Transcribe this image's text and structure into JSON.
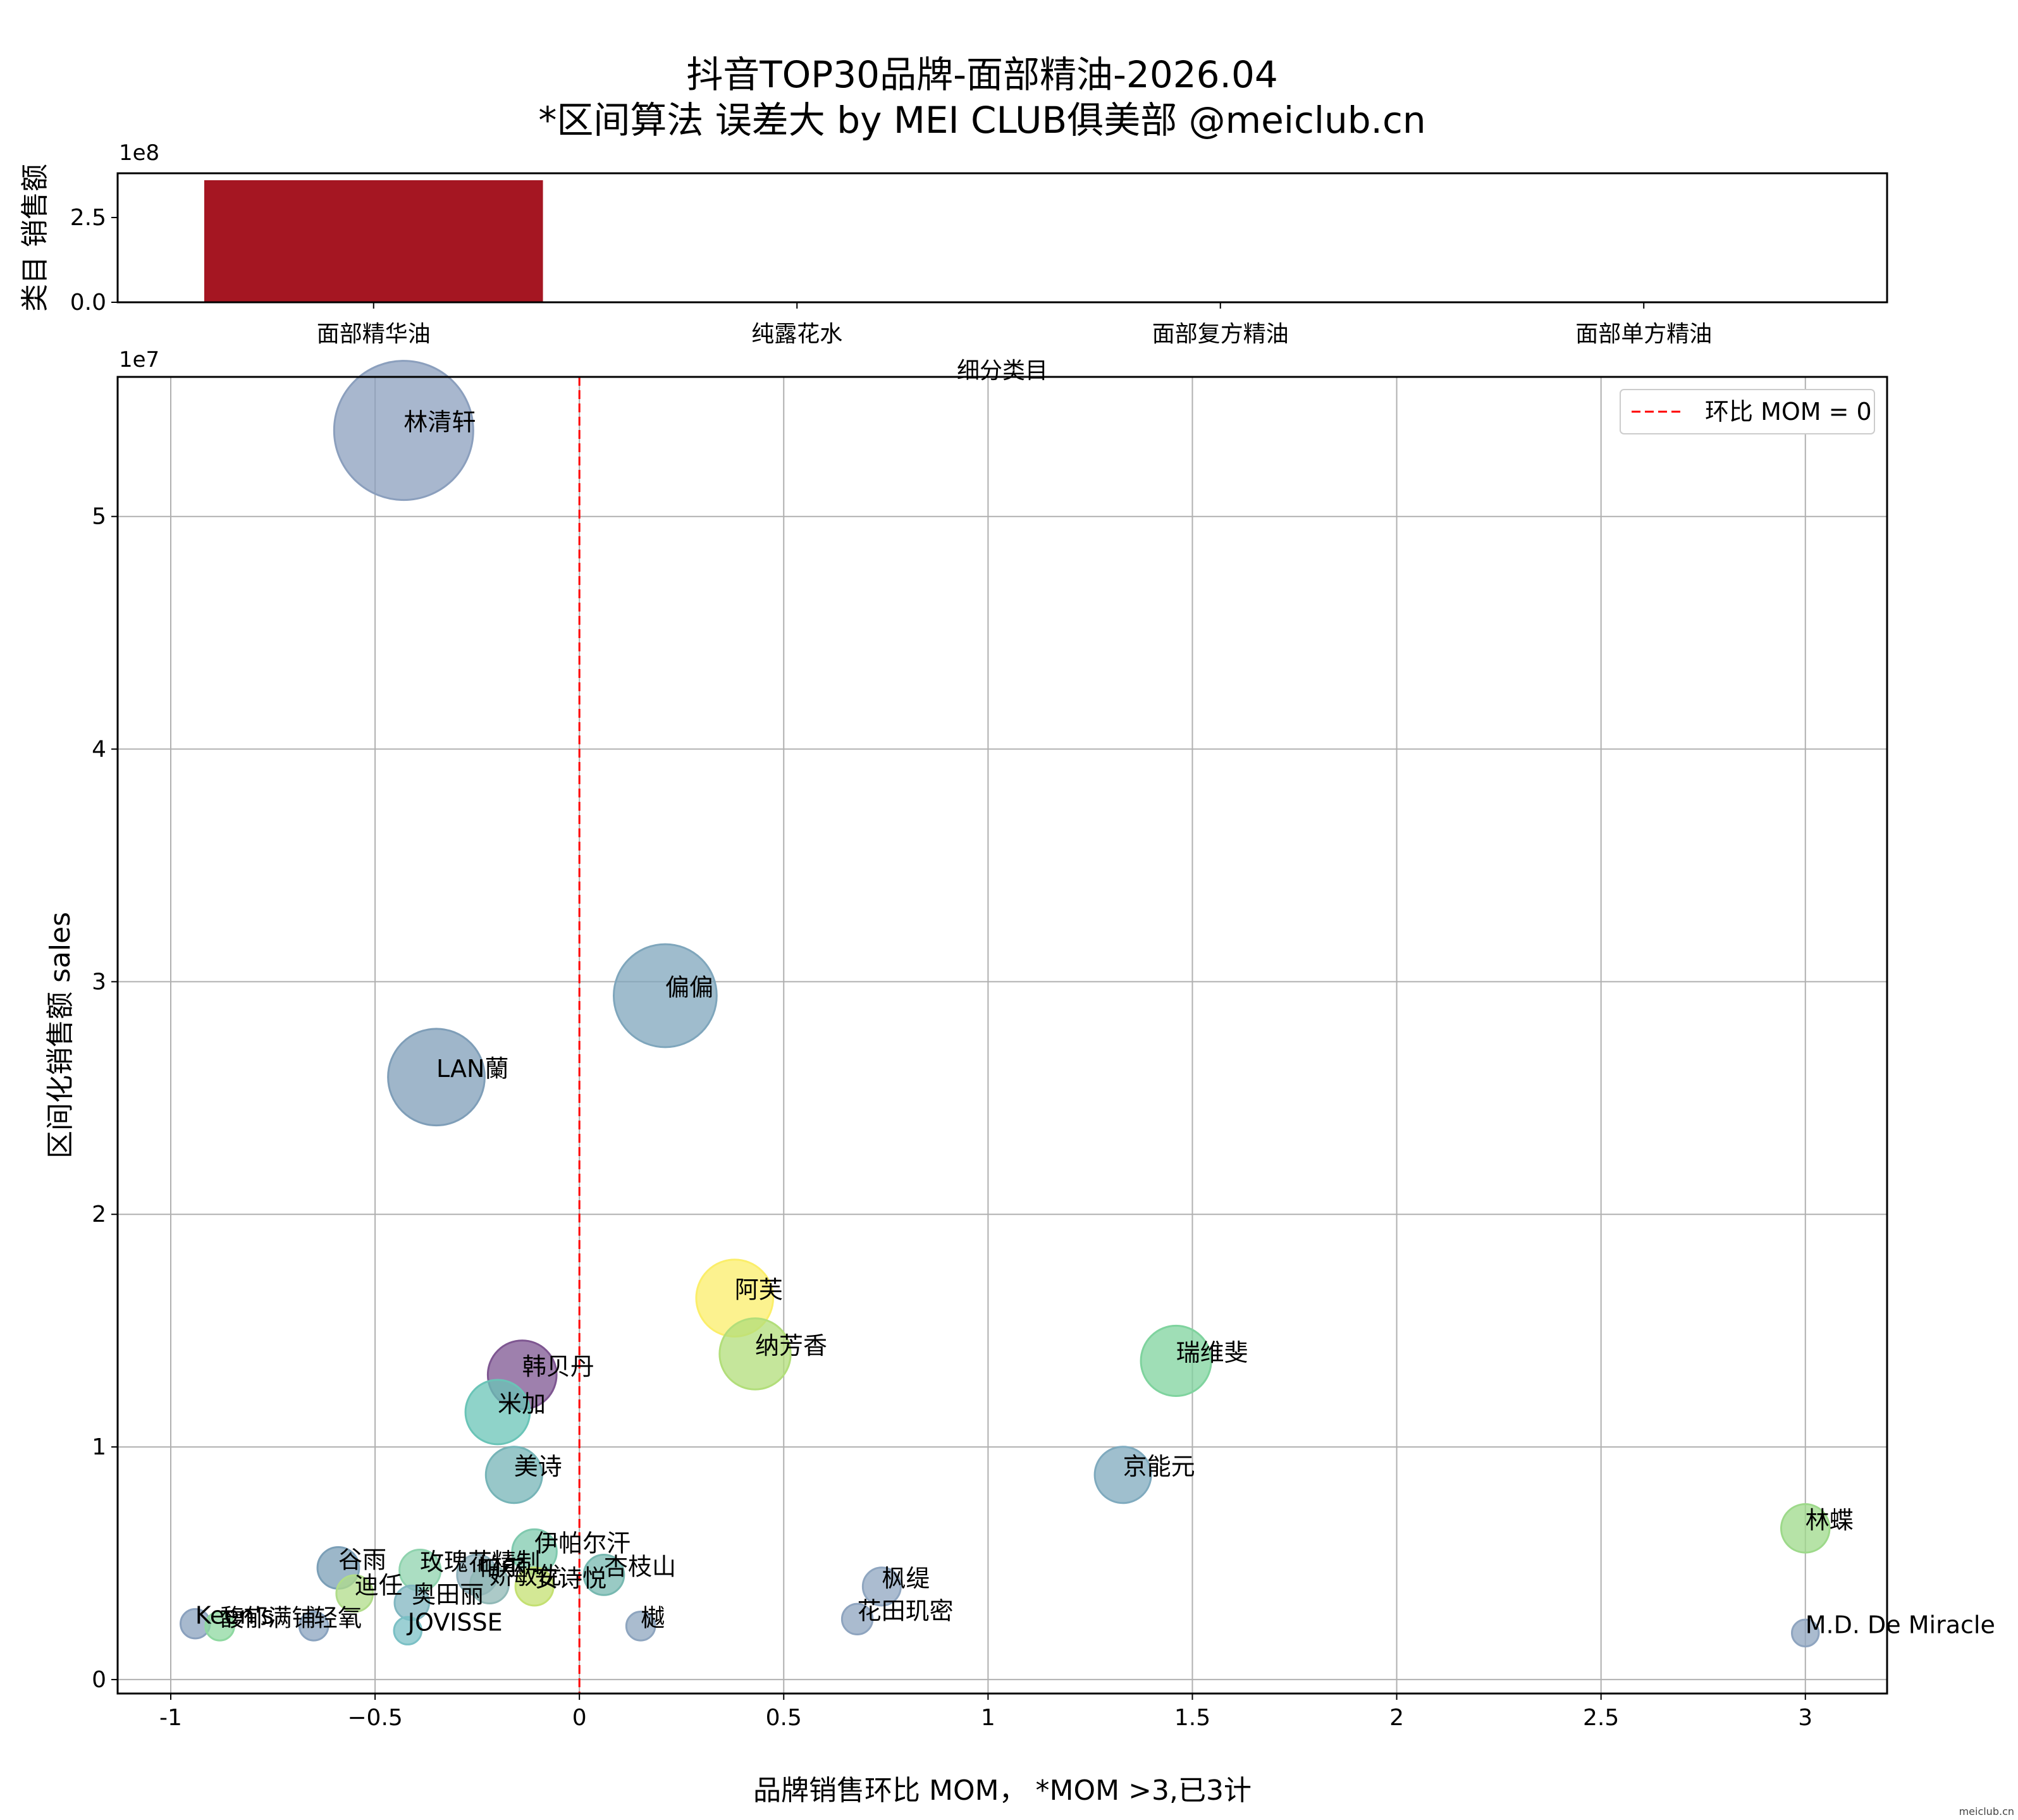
{
  "title_line1": "抖音TOP30品牌-面部精油-2026.04",
  "title_line2": "*区间算法 误差大 by MEI CLUB俱美部 @meiclub.cn",
  "watermark": "meiclub.cn",
  "colors": {
    "bar": "#a51622",
    "mom_line": "#ff0000",
    "grid": "#b0b0b0"
  },
  "chart_data": [
    {
      "type": "bar",
      "categories": [
        "面部精华油",
        "纯露花水",
        "面部复方精油",
        "面部单方精油"
      ],
      "values": [
        360000000,
        0,
        0,
        0
      ],
      "ylabel": "类目 销售额",
      "xlabel": "细分类目",
      "yticks": [
        0.0,
        2.5
      ],
      "ylim": [
        0,
        360000000
      ],
      "offset_text": "1e8",
      "grid": false
    },
    {
      "type": "scatter",
      "xlabel": "品牌销售环比 MOM，  *MOM >3,已3计",
      "ylabel": "区间化销售额 sales",
      "xlim": [
        -1.13,
        3.2
      ],
      "ylim": [
        -600000,
        56000000
      ],
      "xticks": [
        -1.0,
        -0.5,
        0.0,
        0.5,
        1.0,
        1.5,
        2.0,
        2.5,
        3.0
      ],
      "yticks": [
        0,
        1,
        2,
        3,
        4,
        5
      ],
      "offset_text": "1e7",
      "grid": true,
      "legend": {
        "label": "环比 MOM = 0",
        "position": "top-right"
      },
      "mom_line_x": 0,
      "points": [
        {
          "name": "林清轩",
          "x": -0.43,
          "y": 53700000,
          "color": "#8b9fbd"
        },
        {
          "name": "偏偏",
          "x": 0.21,
          "y": 29400000,
          "color": "#7fa6bc"
        },
        {
          "name": "LAN蘭",
          "x": -0.35,
          "y": 25900000,
          "color": "#7f9eb8"
        },
        {
          "name": "阿芙",
          "x": 0.38,
          "y": 16400000,
          "color": "#fbee6a"
        },
        {
          "name": "纳芳香",
          "x": 0.43,
          "y": 14000000,
          "color": "#b2de7a"
        },
        {
          "name": "瑞维斐",
          "x": 1.46,
          "y": 13700000,
          "color": "#7fd39e"
        },
        {
          "name": "韩贝丹",
          "x": -0.14,
          "y": 13100000,
          "color": "#7e5691"
        },
        {
          "name": "米加",
          "x": -0.2,
          "y": 11500000,
          "color": "#6ac4b7"
        },
        {
          "name": "美诗",
          "x": -0.16,
          "y": 8800000,
          "color": "#76b4b7"
        },
        {
          "name": "京能元",
          "x": 1.33,
          "y": 8800000,
          "color": "#7faabe"
        },
        {
          "name": "林蝶",
          "x": 3.0,
          "y": 6500000,
          "color": "#9dd98a"
        },
        {
          "name": "伊帕尔汗",
          "x": -0.11,
          "y": 5500000,
          "color": "#7fc9ae"
        },
        {
          "name": "谷雨",
          "x": -0.59,
          "y": 4800000,
          "color": "#7b9fb7"
        },
        {
          "name": "玫瑰花精制",
          "x": -0.39,
          "y": 4700000,
          "color": "#8fd3ae"
        },
        {
          "name": "帕尔",
          "x": -0.25,
          "y": 4500000,
          "color": "#8fb0bb"
        },
        {
          "name": "杏枝山",
          "x": 0.06,
          "y": 4500000,
          "color": "#77b8b0"
        },
        {
          "name": "枫缇",
          "x": 0.74,
          "y": 4000000,
          "color": "#8fa6c0"
        },
        {
          "name": "迪任",
          "x": -0.55,
          "y": 3700000,
          "color": "#b0dc8a"
        },
        {
          "name": "娇敏优",
          "x": -0.22,
          "y": 4100000,
          "color": "#90b8b6"
        },
        {
          "name": "安诗悦",
          "x": -0.11,
          "y": 4000000,
          "color": "#c4e072"
        },
        {
          "name": "奥田丽",
          "x": -0.41,
          "y": 3300000,
          "color": "#80b6c0"
        },
        {
          "name": "花田玑密",
          "x": 0.68,
          "y": 2600000,
          "color": "#8ea4bf"
        },
        {
          "name": "Keen's",
          "x": -0.94,
          "y": 2400000,
          "color": "#8aa1be"
        },
        {
          "name": "馥郁满铺",
          "x": -0.88,
          "y": 2300000,
          "color": "#8ed8a0"
        },
        {
          "name": "轻氧",
          "x": -0.65,
          "y": 2300000,
          "color": "#8aa3bf"
        },
        {
          "name": "JOVISSE",
          "x": -0.42,
          "y": 2100000,
          "color": "#7bc0c5"
        },
        {
          "name": "樾",
          "x": 0.15,
          "y": 2300000,
          "color": "#8ea5bf"
        },
        {
          "name": "M.D. De Miracle",
          "x": 3.0,
          "y": 2000000,
          "color": "#8ea4bf"
        }
      ]
    }
  ]
}
